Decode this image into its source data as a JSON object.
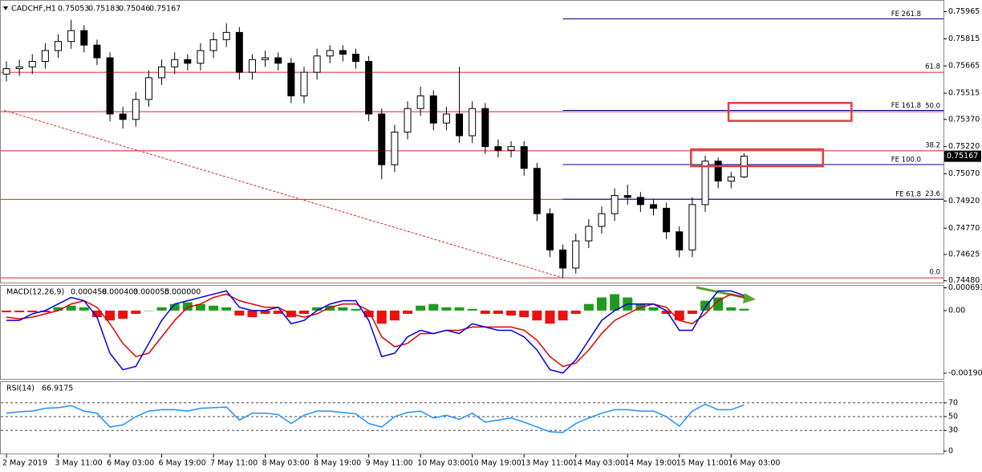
{
  "chart_data": [
    {
      "type": "candlestick",
      "symbol": "CADCHF,H1",
      "categories": [
        "2 May 2019",
        null,
        null,
        null,
        "3 May 11:00",
        null,
        null,
        null,
        "6 May 03:00",
        null,
        null,
        null,
        "6 May 19:00",
        null,
        null,
        null,
        "7 May 11:00",
        null,
        null,
        null,
        "8 May 03:00",
        null,
        null,
        null,
        "8 May 19:00",
        null,
        null,
        null,
        "9 May 11:00",
        null,
        null,
        null,
        "10 May 03:00",
        null,
        null,
        null,
        "10 May 19:00",
        null,
        null,
        null,
        "13 May 11:00",
        null,
        null,
        null,
        "14 May 03:00",
        null,
        null,
        null,
        "14 May 19:00",
        null,
        null,
        null,
        "15 May 11:00",
        null,
        null,
        null,
        "16 May 03:00",
        null
      ],
      "open": [
        0.7562,
        0.7565,
        0.7566,
        0.7569,
        0.7575,
        0.758,
        0.7586,
        0.7578,
        0.7571,
        0.754,
        0.7537,
        0.7548,
        0.756,
        0.7566,
        0.757,
        0.7568,
        0.7575,
        0.7581,
        0.7585,
        0.7563,
        0.757,
        0.7571,
        0.7568,
        0.755,
        0.7563,
        0.7572,
        0.7575,
        0.7573,
        0.7569,
        0.754,
        0.7512,
        0.753,
        0.7543,
        0.755,
        0.7535,
        0.754,
        0.7528,
        0.7543,
        0.7522,
        0.752,
        0.7522,
        0.751,
        0.7485,
        0.7465,
        0.7455,
        0.747,
        0.7478,
        0.7485,
        0.7495,
        0.7494,
        0.749,
        0.7488,
        0.7475,
        0.7465,
        0.749,
        0.7514,
        0.7503,
        0.75053
      ],
      "high": [
        0.7569,
        0.757,
        0.7573,
        0.7579,
        0.7584,
        0.7592,
        0.7589,
        0.7581,
        0.7574,
        0.7544,
        0.7552,
        0.7564,
        0.757,
        0.7574,
        0.7573,
        0.7579,
        0.7585,
        0.759,
        0.7588,
        0.7573,
        0.7575,
        0.7574,
        0.7571,
        0.7566,
        0.7576,
        0.7578,
        0.7578,
        0.7576,
        0.7572,
        0.7543,
        0.7534,
        0.7547,
        0.7555,
        0.7553,
        0.7544,
        0.7566,
        0.7547,
        0.7546,
        0.7526,
        0.7525,
        0.7525,
        0.7513,
        0.7488,
        0.7468,
        0.7474,
        0.7482,
        0.7489,
        0.7499,
        0.7501,
        0.7497,
        0.7493,
        0.7491,
        0.7478,
        0.7494,
        0.7517,
        0.7516,
        0.7508,
        0.75183
      ],
      "low": [
        0.7558,
        0.7561,
        0.7562,
        0.7565,
        0.7571,
        0.7576,
        0.7574,
        0.7567,
        0.7536,
        0.7532,
        0.7533,
        0.7544,
        0.7556,
        0.7562,
        0.7564,
        0.7564,
        0.7571,
        0.7577,
        0.7559,
        0.7559,
        0.7566,
        0.7564,
        0.7546,
        0.7546,
        0.7559,
        0.7568,
        0.7569,
        0.7565,
        0.7536,
        0.7504,
        0.7508,
        0.7526,
        0.7539,
        0.7531,
        0.7531,
        0.7524,
        0.7524,
        0.7518,
        0.7516,
        0.7516,
        0.7506,
        0.7481,
        0.7461,
        0.74495,
        0.7452,
        0.7466,
        0.7474,
        0.7481,
        0.749,
        0.7486,
        0.7484,
        0.7471,
        0.7461,
        0.7461,
        0.7486,
        0.7499,
        0.7499,
        0.75046
      ],
      "close": [
        0.7565,
        0.7566,
        0.7569,
        0.7575,
        0.758,
        0.7586,
        0.7578,
        0.7571,
        0.754,
        0.7537,
        0.7548,
        0.756,
        0.7566,
        0.757,
        0.7568,
        0.7575,
        0.7581,
        0.7585,
        0.7563,
        0.757,
        0.7571,
        0.7568,
        0.755,
        0.7563,
        0.7572,
        0.7575,
        0.7573,
        0.7569,
        0.754,
        0.7512,
        0.753,
        0.7543,
        0.755,
        0.7535,
        0.754,
        0.7528,
        0.7543,
        0.7522,
        0.752,
        0.7522,
        0.751,
        0.7485,
        0.7465,
        0.7455,
        0.747,
        0.7478,
        0.7485,
        0.7495,
        0.7494,
        0.749,
        0.7488,
        0.7475,
        0.7465,
        0.749,
        0.7514,
        0.7503,
        0.75053,
        0.75167
      ],
      "up_color": "#ffffff",
      "down_color": "#000000",
      "ylim": [
        0.7447,
        0.7602
      ],
      "yticks": [
        0.75965,
        0.75815,
        0.75665,
        0.75515,
        {
          "value": 0.7537,
          "label": "0.75370"
        },
        {
          "value": 0.7522,
          "label": "0.75220"
        },
        {
          "value": 0.7507,
          "label": "0.75070"
        },
        {
          "value": 0.7492,
          "label": "0.74920"
        },
        {
          "value": 0.7477,
          "label": "0.74770"
        },
        0.74625,
        {
          "value": 0.7448,
          "label": "0.74480"
        }
      ],
      "retracement": {
        "color": "#e02020",
        "levels": [
          {
            "label": "61.8",
            "value": 0.7563
          },
          {
            "label": "50.0",
            "value": 0.75413
          },
          {
            "label": "38.2",
            "value": 0.75197
          },
          {
            "label": "23.6",
            "value": 0.74929
          },
          {
            "label": "0.0",
            "value": 0.74496
          }
        ]
      },
      "expansion": {
        "color": "#000080",
        "start": 43,
        "levels": [
          {
            "label": "FE 261.8",
            "value": 0.75925
          },
          {
            "label": "FE 161.8",
            "value": 0.7542
          },
          {
            "label": "FE 100.0",
            "value": 0.75121
          },
          {
            "label": "FE 61.8",
            "value": 0.7493
          }
        ]
      },
      "trendline": {
        "color": "#e02020",
        "x": [
          0,
          43
        ],
        "y": [
          0.7542,
          0.74496
        ]
      },
      "zones": [
        {
          "color": "#e04040",
          "x": [
            52.9,
            63.1
          ],
          "y": [
            0.75112,
            0.75205
          ]
        },
        {
          "color": "#e04040",
          "x": [
            55.8,
            65.3
          ],
          "y": [
            0.75362,
            0.75461
          ]
        }
      ]
    },
    {
      "type": "macd",
      "title": "MACD(12,26,9)",
      "histogram": [
        -5e-05,
        -5e-05,
        -5e-05,
        -5e-05,
        0.0001,
        0.00015,
        0.0001,
        -0.0002,
        -0.0003,
        -0.00025,
        -0.0001,
        0,
        0.0001,
        0.0002,
        0.00025,
        0.0002,
        0.00015,
        0.0001,
        -0.00015,
        -0.0002,
        -0.0001,
        -0.0001,
        -0.0002,
        -0.0001,
        0.0001,
        0.00015,
        0.0001,
        5e-05,
        -0.0002,
        -0.0004,
        -0.0003,
        -0.0001,
        0.00015,
        0.0002,
        0.0001,
        0.0001,
        5e-05,
        -0.0001,
        -0.0001,
        -0.00015,
        -0.0002,
        -0.0003,
        -0.0004,
        -0.0003,
        -0.0001,
        0.0002,
        0.0004,
        0.0005,
        0.0004,
        0.0002,
        0.0001,
        -0.0001,
        -0.0003,
        -0.0001,
        0.0003,
        0.0004,
        0.0001,
        5.5e-05
      ],
      "macd": [
        -0.0003,
        -0.0003,
        -0.0001,
        0,
        0.0002,
        0.0004,
        0.0003,
        -0.0002,
        -0.0013,
        -0.0018,
        -0.0017,
        -0.001,
        -0.0003,
        0.0002,
        0.0003,
        0.0004,
        0.0005,
        0.0006,
        0.0001,
        0,
        0,
        0.0001,
        -0.0004,
        -0.0003,
        0,
        0.0002,
        0.0003,
        0.0003,
        -0.0003,
        -0.0014,
        -0.0013,
        -0.0008,
        -0.0006,
        -0.0007,
        -0.0006,
        -0.0007,
        -0.0004,
        -0.0005,
        -0.0006,
        -0.0006,
        -0.0008,
        -0.0012,
        -0.0018,
        -0.0019,
        -0.0015,
        -0.0009,
        -0.0003,
        0,
        0.0002,
        0.0002,
        0.0002,
        0,
        -0.0006,
        -0.0006,
        0.0001,
        0.0006,
        0.0006,
        0.000458
      ],
      "signal": [
        -0.0002,
        -0.00025,
        -0.0002,
        -0.0001,
        0,
        0.0002,
        0.0003,
        0.0001,
        -0.0004,
        -0.001,
        -0.0014,
        -0.0013,
        -0.0008,
        -0.0003,
        0.0001,
        0.0002,
        0.0004,
        0.0005,
        0.0003,
        0.0002,
        0.0001,
        0.0001,
        -0.0001,
        -0.0002,
        -0.0001,
        0.0001,
        0.0002,
        0.0002,
        0,
        -0.0008,
        -0.0011,
        -0.001,
        -0.0007,
        -0.0007,
        -0.0006,
        -0.0006,
        -0.0005,
        -0.0005,
        -0.0005,
        -0.0005,
        -0.0006,
        -0.0009,
        -0.0014,
        -0.0017,
        -0.0016,
        -0.0012,
        -0.0007,
        -0.0003,
        -0.0001,
        0.0001,
        0.0002,
        0.0001,
        -0.0003,
        -0.0004,
        -0.0001,
        0.0003,
        0.0005,
        0.000403
      ],
      "extra": {
        "value": 0,
        "label": "0.000000"
      },
      "macd_color": "#0000dd",
      "signal_color": "#e00000",
      "up_color": "#1f9a1f",
      "down_color": "#ee1010",
      "ylim": [
        -0.00208,
        0.00078
      ],
      "yticks": [
        0.000693,
        {
          "value": 0,
          "label": "0.00"
        },
        -0.001908
      ]
    },
    {
      "type": "rsi",
      "title": "RSI(14)",
      "values": [
        55,
        57,
        58,
        62,
        63,
        66,
        58,
        55,
        35,
        38,
        50,
        58,
        60,
        60,
        58,
        62,
        63,
        64,
        45,
        55,
        55,
        53,
        40,
        52,
        58,
        58,
        56,
        54,
        40,
        35,
        50,
        56,
        58,
        48,
        52,
        46,
        55,
        42,
        45,
        48,
        42,
        35,
        28,
        27,
        40,
        48,
        55,
        60,
        60,
        58,
        58,
        50,
        36,
        58,
        68,
        60,
        60,
        66.9175
      ],
      "color": "#1e90ff",
      "grid": true,
      "ylim": [
        0,
        100
      ],
      "yticks": [
        70,
        50,
        30,
        0
      ]
    }
  ]
}
